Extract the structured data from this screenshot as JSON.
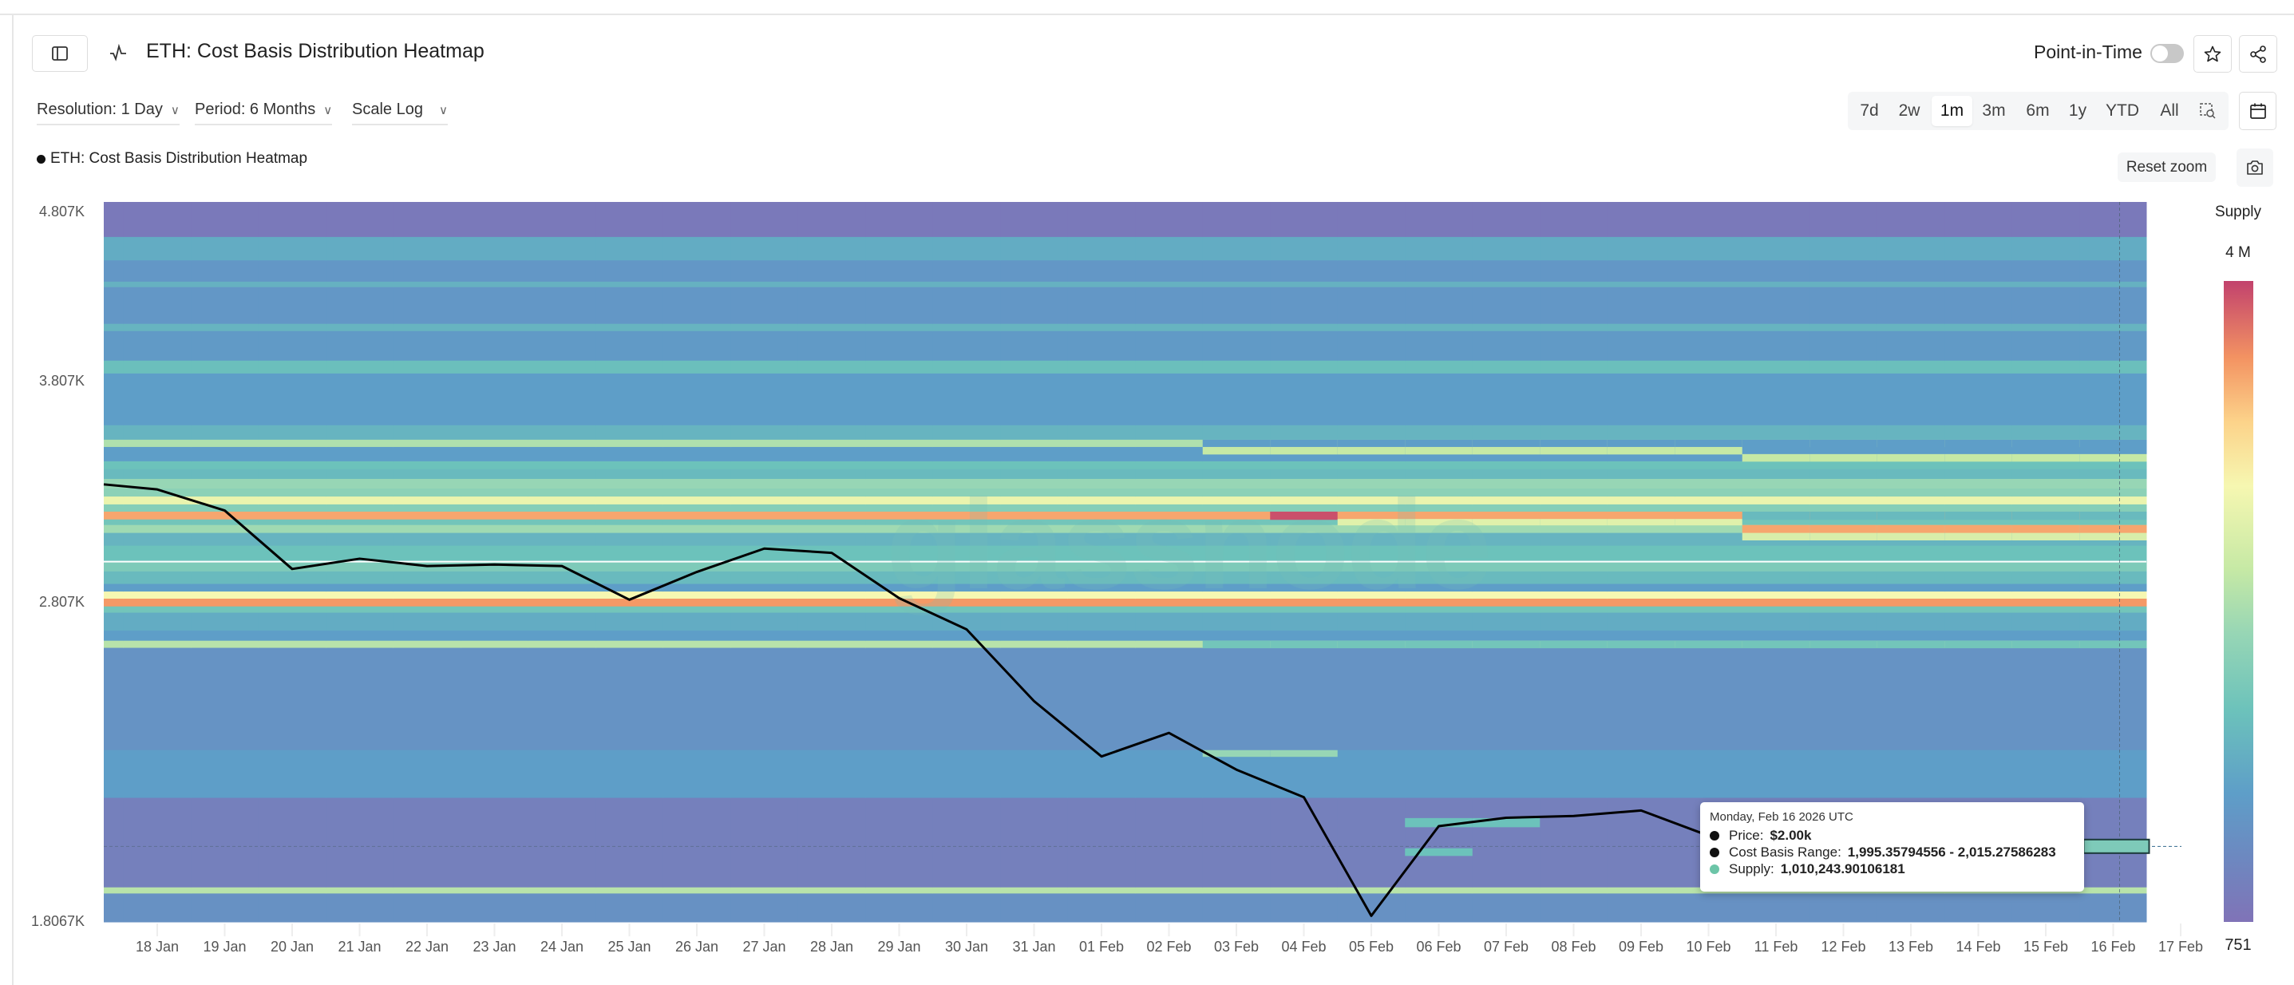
{
  "header": {
    "title": "ETH: Cost Basis Distribution Heatmap",
    "point_in_time_label": "Point-in-Time",
    "point_in_time_on": false
  },
  "controls": {
    "resolution": "Resolution: 1 Day",
    "period": "Period: 6 Months",
    "scale": "Scale Log",
    "ranges": [
      "7d",
      "2w",
      "1m",
      "3m",
      "6m",
      "1y",
      "YTD",
      "All"
    ],
    "active_range": "1m",
    "reset_zoom": "Reset zoom"
  },
  "legend": {
    "series": "ETH: Cost Basis Distribution Heatmap"
  },
  "watermark": "glassnode",
  "tooltip": {
    "date": "Monday, Feb 16 2026 UTC",
    "price_label": "Price:",
    "price_value": "$2.00k",
    "range_label": "Cost Basis Range:",
    "range_value": "1,995.35794556 - 2,015.27586283",
    "supply_label": "Supply:",
    "supply_value": "1,010,243.90106181",
    "price_dot_color": "#111111",
    "supply_dot_color": "#6cc5a8"
  },
  "chart_data": {
    "type": "heatmap",
    "title": "ETH: Cost Basis Distribution Heatmap",
    "y_scale": "log",
    "ylim": [
      1806.7,
      4878
    ],
    "y_ticks": [
      {
        "value": 4807,
        "label": "4.807K"
      },
      {
        "value": 3807,
        "label": "3.807K"
      },
      {
        "value": 2807,
        "label": "2.807K"
      },
      {
        "value": 1806.7,
        "label": "1.8067K"
      }
    ],
    "x_ticks": [
      "18 Jan",
      "19 Jan",
      "20 Jan",
      "21 Jan",
      "22 Jan",
      "23 Jan",
      "24 Jan",
      "25 Jan",
      "26 Jan",
      "27 Jan",
      "28 Jan",
      "29 Jan",
      "30 Jan",
      "31 Jan",
      "01 Feb",
      "02 Feb",
      "03 Feb",
      "04 Feb",
      "05 Feb",
      "06 Feb",
      "07 Feb",
      "08 Feb",
      "09 Feb",
      "10 Feb",
      "11 Feb",
      "12 Feb",
      "13 Feb",
      "14 Feb",
      "15 Feb",
      "16 Feb",
      "17 Feb"
    ],
    "colorbar": {
      "title": "Supply",
      "max_label": "4 M",
      "min_label": "751",
      "stops": [
        [
          0.0,
          "#8073b7"
        ],
        [
          0.1,
          "#6d88c0"
        ],
        [
          0.2,
          "#5e9ec8"
        ],
        [
          0.33,
          "#6cc2bb"
        ],
        [
          0.45,
          "#97d6b5"
        ],
        [
          0.55,
          "#c6e9a5"
        ],
        [
          0.68,
          "#f6f7b1"
        ],
        [
          0.78,
          "#fcd38a"
        ],
        [
          0.88,
          "#f39362"
        ],
        [
          1.0,
          "#c2426d"
        ]
      ]
    },
    "bands_level_note_unit": "colorbar fraction",
    "bands": [
      [
        4648,
        4878,
        0.03
      ],
      [
        4500,
        4648,
        0.25
      ],
      [
        4370,
        4500,
        0.17
      ],
      [
        4337,
        4370,
        0.27
      ],
      [
        4123,
        4337,
        0.17
      ],
      [
        4082,
        4123,
        0.28
      ],
      [
        3919,
        4082,
        0.18
      ],
      [
        3850,
        3919,
        0.32
      ],
      [
        3585,
        3850,
        0.2
      ],
      [
        3514,
        3585,
        0.28
      ],
      [
        3479,
        3514,
        0.5
      ],
      [
        3411,
        3479,
        0.2
      ],
      [
        3374,
        3411,
        0.33
      ],
      [
        3329,
        3374,
        0.3
      ],
      [
        3285,
        3329,
        0.45
      ],
      [
        3249,
        3285,
        0.42
      ],
      [
        3214,
        3249,
        0.65
      ],
      [
        3182,
        3214,
        0.4
      ],
      [
        3148,
        3182,
        0.85
      ],
      [
        3124,
        3148,
        0.35
      ],
      [
        3090,
        3124,
        0.47
      ],
      [
        3036,
        3090,
        0.28
      ],
      [
        2973,
        3036,
        0.33
      ],
      [
        2930,
        2973,
        0.38
      ],
      [
        2880,
        2930,
        0.3
      ],
      [
        2850,
        2880,
        0.2
      ],
      [
        2822,
        2850,
        0.68
      ],
      [
        2792,
        2822,
        0.87
      ],
      [
        2768,
        2792,
        0.35
      ],
      [
        2700,
        2768,
        0.25
      ],
      [
        2663,
        2700,
        0.2
      ],
      [
        2637,
        2663,
        0.52
      ],
      [
        2290,
        2637,
        0.15
      ],
      [
        2144,
        2290,
        0.2
      ],
      [
        1895,
        2144,
        0.06
      ],
      [
        1879,
        1895,
        0.52
      ],
      [
        1806.7,
        1879,
        0.14
      ]
    ],
    "overrides": [
      {
        "lo": 3479,
        "hi": 3514,
        "level": 0.2,
        "from": "03 Feb",
        "to": "16 Feb"
      },
      {
        "lo": 3445,
        "hi": 3479,
        "level": 0.55,
        "from": "03 Feb",
        "to": "10 Feb"
      },
      {
        "lo": 3411,
        "hi": 3445,
        "level": 0.55,
        "from": "11 Feb",
        "to": "16 Feb"
      },
      {
        "lo": 3124,
        "hi": 3150,
        "level": 0.62,
        "from": "05 Feb",
        "to": "10 Feb"
      },
      {
        "lo": 3148,
        "hi": 3182,
        "level": 0.98,
        "from": "04 Feb",
        "to": "04 Feb"
      },
      {
        "lo": 3148,
        "hi": 3182,
        "level": 0.3,
        "from": "11 Feb",
        "to": "16 Feb"
      },
      {
        "lo": 3090,
        "hi": 3124,
        "level": 0.85,
        "from": "11 Feb",
        "to": "16 Feb"
      },
      {
        "lo": 3060,
        "hi": 3090,
        "level": 0.6,
        "from": "11 Feb",
        "to": "16 Feb"
      },
      {
        "lo": 2637,
        "hi": 2663,
        "level": 0.35,
        "from": "03 Feb",
        "to": "16 Feb"
      },
      {
        "lo": 2270,
        "hi": 2290,
        "level": 0.45,
        "from": "03 Feb",
        "to": "04 Feb"
      },
      {
        "lo": 2060,
        "hi": 2085,
        "level": 0.33,
        "from": "06 Feb",
        "to": "07 Feb"
      },
      {
        "lo": 1980,
        "hi": 2000,
        "level": 0.33,
        "from": "06 Feb",
        "to": "06 Feb"
      },
      {
        "lo": 1995.36,
        "hi": 2015.28,
        "level": 0.38,
        "from": "16 Feb",
        "to": "16 Feb"
      }
    ],
    "reference_line_price": 2970,
    "price_left_edge": 3304,
    "price": [
      3281,
      3187,
      2940,
      2982,
      2952,
      2958,
      2952,
      2818,
      2928,
      3024,
      3006,
      2824,
      2705,
      2450,
      2270,
      2345,
      2229,
      2146,
      1822,
      2062,
      2086,
      2091,
      2107,
      2035,
      null,
      null,
      null,
      null,
      null,
      2000,
      null
    ],
    "hover": {
      "date": "16 Feb",
      "price": 2005
    }
  }
}
